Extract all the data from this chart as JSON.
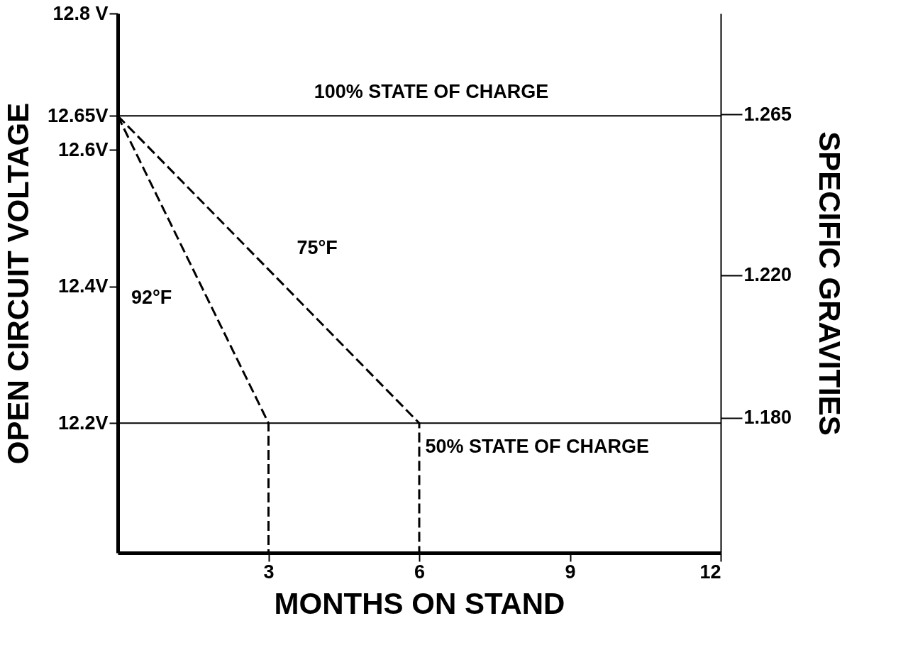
{
  "chart_data": {
    "type": "line",
    "xlabel": "MONTHS ON STAND",
    "ylabel": "OPEN CIRCUIT VOLTAGE",
    "y2label": "SPECIFIC GRAVITIES",
    "xlim": [
      0,
      12
    ],
    "xticks": [
      3,
      6,
      9,
      12
    ],
    "ylim": [
      12.01,
      12.8
    ],
    "yticks": [
      {
        "value": 12.8,
        "label": "12.8 V"
      },
      {
        "value": 12.65,
        "label": "12.65V"
      },
      {
        "value": 12.6,
        "label": "12.6V"
      },
      {
        "value": 12.4,
        "label": "12.4V"
      },
      {
        "value": 12.2,
        "label": "12.2V"
      }
    ],
    "y2lim": [
      1.1422,
      1.2933
    ],
    "y2ticks": [
      1.265,
      {
        "value": 1.22,
        "label": "1.220"
      },
      {
        "value": 1.18,
        "label": "1.180"
      }
    ],
    "series": [
      {
        "name": "92°F",
        "color": "#000000",
        "line_style": "dashed",
        "x": [
          0,
          3,
          3
        ],
        "values": [
          12.65,
          12.2,
          12.01
        ]
      },
      {
        "name": "75°F",
        "color": "#000000",
        "line_style": "dashed",
        "x": [
          0,
          6,
          6
        ],
        "values": [
          12.65,
          12.2,
          12.01
        ]
      }
    ],
    "ref_lines": [
      {
        "axis": "y",
        "value": 12.65,
        "label": "100% STATE OF CHARGE",
        "color": "#000000",
        "line_style": "solid"
      },
      {
        "axis": "y",
        "value": 12.2,
        "label": "50% STATE OF CHARGE",
        "color": "#000000",
        "line_style": "solid"
      }
    ],
    "grid": false,
    "legend": false,
    "marker": "none"
  }
}
